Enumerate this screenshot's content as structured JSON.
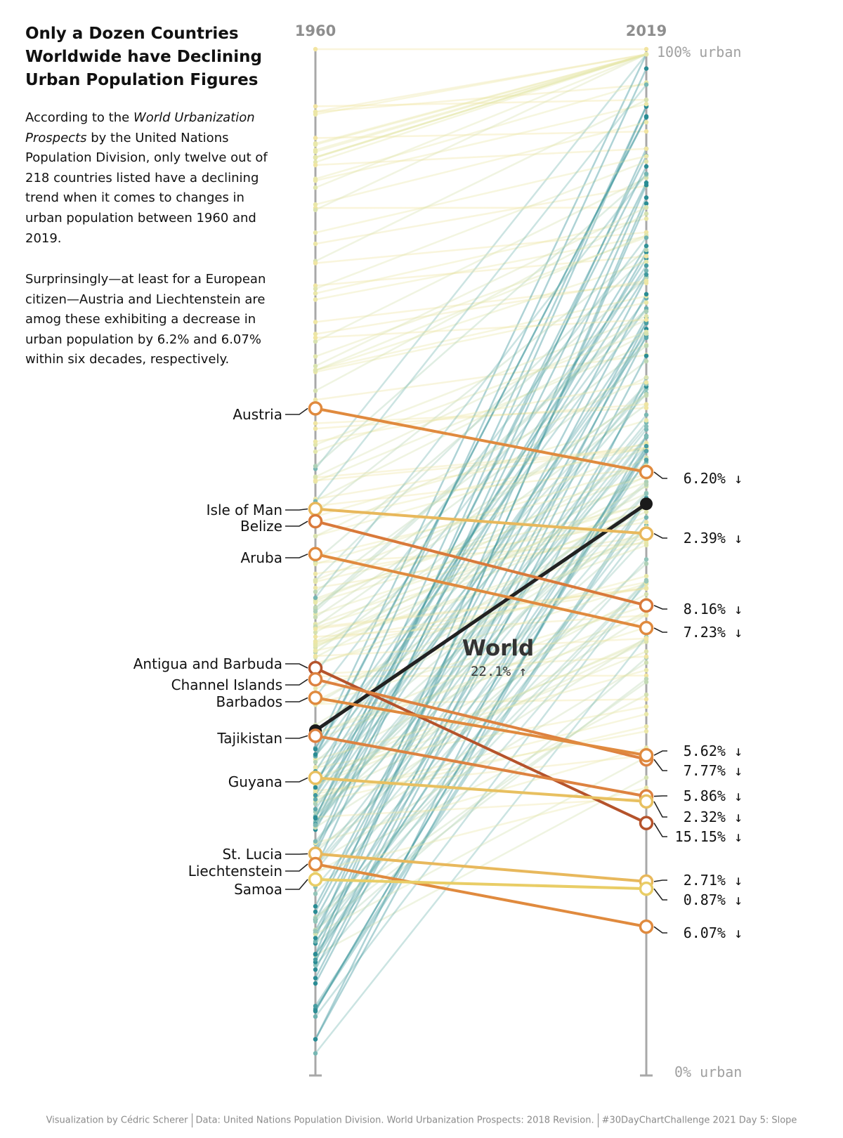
{
  "title": "Only a Dozen Countries Worldwide have Declining Urban Population Figures",
  "text": {
    "p1_before": "According to the ",
    "p1_em1": "World Urbanization",
    "p1_em2": "Prospects",
    "p1_after": " by the United Nations Population Division, only twelve out of 218 countries listed have a declining trend when it comes to changes in urban population between 1960 and 2019.",
    "p2": "Surprinsingly—at least for a European citizen—Austria and Liechtenstein are amog these exhibiting a decrease in urban population by 6.2% and 6.07% within six decades, respectively."
  },
  "caption": {
    "part1": "Visualization by Cédric Scherer",
    "part2": "Data: United Nations Population Division. World Urbanization Prospects: 2018 Revision.",
    "part3": "#30DayChartChallenge 2021 Day 5: Slope"
  },
  "chart_data": {
    "type": "slope",
    "x_labels": [
      "1960",
      "2019"
    ],
    "y_range": [
      0,
      100
    ],
    "top_axis_label": "100% urban",
    "bottom_axis_label": "0% urban",
    "highlight": [
      {
        "name": "Austria",
        "v1960": 65.0,
        "v2019": 58.8,
        "change": "6.20% ↓",
        "color": "#e08a3e"
      },
      {
        "name": "Isle of Man",
        "v1960": 55.2,
        "v2019": 52.8,
        "change": "2.39% ↓",
        "color": "#e8b85c"
      },
      {
        "name": "Belize",
        "v1960": 54.0,
        "v2019": 45.8,
        "change": "8.16% ↓",
        "color": "#d9793a"
      },
      {
        "name": "Aruba",
        "v1960": 50.8,
        "v2019": 43.6,
        "change": "7.23% ↓",
        "color": "#e08a3e"
      },
      {
        "name": "Antigua and Barbuda",
        "v1960": 39.7,
        "v2019": 24.6,
        "change": "15.15% ↓",
        "color": "#b5532b"
      },
      {
        "name": "Channel Islands",
        "v1960": 38.6,
        "v2019": 30.8,
        "change": "7.77% ↓",
        "color": "#dd8240"
      },
      {
        "name": "Barbados",
        "v1960": 36.8,
        "v2019": 31.2,
        "change": "5.62% ↓",
        "color": "#e08a3e"
      },
      {
        "name": "Tajikistan",
        "v1960": 33.1,
        "v2019": 27.2,
        "change": "5.86% ↓",
        "color": "#dd8240"
      },
      {
        "name": "Guyana",
        "v1960": 29.0,
        "v2019": 26.7,
        "change": "2.32% ↓",
        "color": "#e8c060"
      },
      {
        "name": "St. Lucia",
        "v1960": 21.6,
        "v2019": 18.9,
        "change": "2.71% ↓",
        "color": "#e8b85c"
      },
      {
        "name": "Liechtenstein",
        "v1960": 20.6,
        "v2019": 14.5,
        "change": "6.07% ↓",
        "color": "#e08a3e"
      },
      {
        "name": "Samoa",
        "v1960": 19.1,
        "v2019": 18.2,
        "change": "0.87% ↓",
        "color": "#e9cd66"
      }
    ],
    "world": {
      "name": "World",
      "v1960": 33.6,
      "v2019": 55.7,
      "change": "22.1% ↑",
      "color": "#1a1a1a"
    }
  }
}
